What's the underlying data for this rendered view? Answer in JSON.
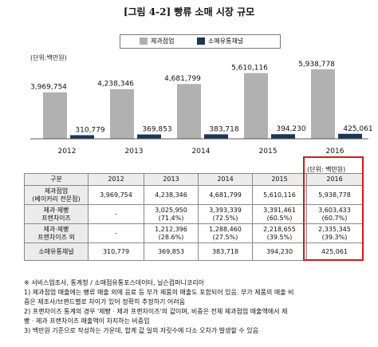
{
  "title": "[그림 4-2] 빵류 소매 시장 규모",
  "unit_label": "(단위:백만원)",
  "colors": {
    "store": "#b1b1b1",
    "retail": "#1f3556"
  },
  "chart_data": {
    "type": "bar",
    "categories": [
      "2012",
      "2013",
      "2014",
      "2015",
      "2016"
    ],
    "series": [
      {
        "name": "제과점업",
        "values": [
          3969754,
          4238346,
          4681799,
          5610116,
          5938778
        ],
        "labels": [
          "3,969,754",
          "4,238,346",
          "4,681,799",
          "5,610,116",
          "5,938,778"
        ]
      },
      {
        "name": "소매유통채널",
        "values": [
          310779,
          369853,
          383718,
          394230,
          425061
        ],
        "labels": [
          "310,779",
          "369,853",
          "383,718",
          "394,230",
          "425,061"
        ]
      }
    ],
    "ylim": [
      0,
      6400000
    ],
    "legend": "top"
  },
  "table": {
    "unit": "(단위: 백만원)",
    "header": [
      "구분",
      "2012",
      "2013",
      "2014",
      "2015",
      "2016"
    ],
    "rows": [
      {
        "label": [
          "제과점업",
          "(베이커리 전문점)"
        ],
        "cells": [
          [
            "3,969,754"
          ],
          [
            "4,238,346"
          ],
          [
            "4,681,799"
          ],
          [
            "5,610,116"
          ],
          [
            "5,938,778"
          ]
        ]
      },
      {
        "label": [
          "제과·제빵",
          "프랜차이즈"
        ],
        "cells": [
          [
            "-"
          ],
          [
            "3,025,950",
            "(71.4%)"
          ],
          [
            "3,393,339",
            "(72.5%)"
          ],
          [
            "3,391,461",
            "(60.5%)"
          ],
          [
            "3,603,433",
            "(60.7%)"
          ]
        ]
      },
      {
        "label": [
          "제과·제빵",
          "프랜차이즈 외"
        ],
        "cells": [
          [
            "-"
          ],
          [
            "1,212,396",
            "(28.6%)"
          ],
          [
            "1,288,460",
            "(27.5%)"
          ],
          [
            "2,218,655",
            "(39.5%)"
          ],
          [
            "2,335,345",
            "(39.3%)"
          ]
        ]
      },
      {
        "label": [
          "소매유통채널"
        ],
        "cells": [
          [
            "310,779"
          ],
          [
            "369,853"
          ],
          [
            "383,718"
          ],
          [
            "394,230"
          ],
          [
            "425,061"
          ]
        ]
      }
    ]
  },
  "notes": [
    "※ 서비스업조사, 통계청 / 소매점유통포스데이터, 닐슨컴퍼니코리아",
    "1) 제과점업 매출에는 빵류 매출 외에 음료 등 부가 제품의 매출도 포함되어 있음. 부가 제품의 매출 비",
    "   중은 제조사/브랜드별로 차이가 있어 정확히 추정하기 어려움",
    "2) 프랜차이즈 통계의 경우 '제빵 · 제과 프랜차이즈'의 값이며, 비중은 전체 제과점업 매출액에서 제",
    "   빵 · 제과 프랜차이즈 매출액이 차지하는 비중임",
    "3) 백만원 기준으로 작성하는 가운데, 합계 값 일의 자릿수에 다소 오차가 발생할 수 있음"
  ]
}
